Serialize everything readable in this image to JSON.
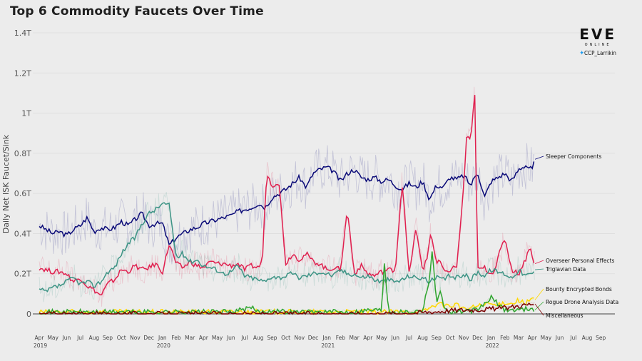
{
  "title": "Top 6 Commodity Faucets Over Time",
  "brand": {
    "logo": "EVE",
    "sub": "ONLINE",
    "handle": "CCP_Larrikin"
  },
  "chart_data": {
    "type": "line",
    "title": "Top 6 Commodity Faucets Over Time",
    "ylabel": "Daily Net ISK Faucet/Sink",
    "ylim": [
      0,
      1.4
    ],
    "y_unit": "T",
    "yticks": [
      {
        "value": 0,
        "label": "0"
      },
      {
        "value": 0.2,
        "label": "0.2T"
      },
      {
        "value": 0.4,
        "label": "0.4T"
      },
      {
        "value": 0.6,
        "label": "0.6T"
      },
      {
        "value": 0.8,
        "label": "0.8T"
      },
      {
        "value": 1.0,
        "label": "1T"
      },
      {
        "value": 1.2,
        "label": "1.2T"
      },
      {
        "value": 1.4,
        "label": "1.4T"
      }
    ],
    "xlim": [
      "2019-04",
      "2022-09"
    ],
    "month_labels": [
      "Apr",
      "May",
      "Jun",
      "Jul",
      "Aug",
      "Sep",
      "Oct",
      "Nov",
      "Dec",
      "Jan",
      "Feb",
      "Mar",
      "Apr",
      "May",
      "Jun",
      "Jul",
      "Aug",
      "Sep",
      "Oct",
      "Nov",
      "Dec",
      "Jan",
      "Feb",
      "Mar",
      "Apr",
      "May",
      "Jun",
      "Jul",
      "Aug",
      "Sep",
      "Oct",
      "Nov",
      "Dec",
      "Jan",
      "Feb",
      "Mar",
      "Apr",
      "May",
      "Jun",
      "Jul",
      "Aug",
      "Sep"
    ],
    "year_labels": [
      {
        "month_index": 0,
        "label": "2019"
      },
      {
        "month_index": 9,
        "label": "2020"
      },
      {
        "month_index": 21,
        "label": "2021"
      },
      {
        "month_index": 33,
        "label": "2022"
      }
    ],
    "series": [
      {
        "name": "Sleeper Components",
        "color": "#0a0a78",
        "x": [
          0,
          0.5,
          1,
          1.5,
          2,
          2.5,
          3,
          3.5,
          4,
          4.5,
          5,
          5.5,
          6,
          6.5,
          7,
          7.5,
          8,
          8.5,
          9,
          9.5,
          10,
          10.5,
          11,
          11.5,
          12,
          12.5,
          13,
          13.5,
          14,
          14.5,
          15,
          15.5,
          16,
          16.5,
          17,
          17.5,
          18,
          18.5,
          19,
          19.5,
          20,
          20.5,
          21,
          21.5,
          22,
          22.5,
          23,
          23.5,
          24,
          24.5,
          25,
          25.5,
          26,
          26.5,
          27,
          27.5,
          28,
          28.5,
          29,
          29.5,
          30,
          30.5,
          31,
          31.5,
          32,
          32.5,
          33,
          33.5,
          34,
          34.5,
          35,
          35.5,
          36,
          36.2
        ],
        "y": [
          0.44,
          0.42,
          0.4,
          0.41,
          0.39,
          0.42,
          0.44,
          0.48,
          0.41,
          0.43,
          0.42,
          0.43,
          0.46,
          0.44,
          0.47,
          0.5,
          0.44,
          0.45,
          0.45,
          0.34,
          0.38,
          0.4,
          0.42,
          0.43,
          0.45,
          0.46,
          0.47,
          0.48,
          0.49,
          0.51,
          0.52,
          0.53,
          0.55,
          0.53,
          0.58,
          0.6,
          0.62,
          0.65,
          0.68,
          0.63,
          0.7,
          0.72,
          0.73,
          0.71,
          0.66,
          0.7,
          0.72,
          0.68,
          0.67,
          0.68,
          0.66,
          0.67,
          0.64,
          0.62,
          0.65,
          0.63,
          0.66,
          0.57,
          0.64,
          0.63,
          0.68,
          0.67,
          0.69,
          0.64,
          0.71,
          0.58,
          0.66,
          0.68,
          0.7,
          0.66,
          0.72,
          0.74,
          0.72,
          0.77
        ]
      },
      {
        "name": "Overseer Personal Effects",
        "color": "#e0204f",
        "x": [
          0,
          0.5,
          1,
          1.5,
          2,
          2.5,
          3,
          3.5,
          4,
          4.5,
          5,
          5.5,
          6,
          6.5,
          7,
          7.5,
          8,
          8.5,
          9,
          9.5,
          10,
          10.5,
          11,
          11.5,
          12,
          12.5,
          13,
          13.5,
          14,
          14.5,
          15,
          15.5,
          16,
          16.3,
          16.6,
          17,
          17.5,
          18,
          18.5,
          19,
          19.5,
          20,
          20.5,
          21,
          21.5,
          22,
          22.5,
          23,
          23.5,
          24,
          24.5,
          25,
          25.5,
          26,
          26.5,
          27,
          27.5,
          28,
          28.3,
          28.6,
          29,
          29.3,
          29.6,
          30,
          30.5,
          31,
          31.2,
          31.5,
          31.8,
          32,
          32.5,
          33,
          33.3,
          33.6,
          34,
          34.5,
          35,
          35.5,
          35.8,
          36,
          36.2
        ],
        "y": [
          0.23,
          0.22,
          0.21,
          0.21,
          0.2,
          0.16,
          0.18,
          0.14,
          0.12,
          0.09,
          0.15,
          0.17,
          0.22,
          0.21,
          0.24,
          0.22,
          0.23,
          0.25,
          0.21,
          0.35,
          0.25,
          0.23,
          0.26,
          0.24,
          0.23,
          0.26,
          0.25,
          0.25,
          0.24,
          0.25,
          0.22,
          0.24,
          0.23,
          0.27,
          0.7,
          0.64,
          0.66,
          0.25,
          0.3,
          0.27,
          0.3,
          0.26,
          0.25,
          0.22,
          0.23,
          0.22,
          0.52,
          0.2,
          0.24,
          0.2,
          0.19,
          0.21,
          0.22,
          0.22,
          0.66,
          0.2,
          0.42,
          0.22,
          0.27,
          0.41,
          0.25,
          0.26,
          0.2,
          0.22,
          0.24,
          0.64,
          0.88,
          0.86,
          1.1,
          0.22,
          0.23,
          0.2,
          0.23,
          0.3,
          0.38,
          0.22,
          0.2,
          0.27,
          0.34,
          0.28,
          0.25
        ]
      },
      {
        "name": "Triglavian Data",
        "color": "#3d9485",
        "x": [
          0,
          0.5,
          1,
          1.5,
          2,
          2.5,
          3,
          3.5,
          4,
          4.5,
          5,
          5.5,
          6,
          6.5,
          7,
          7.5,
          8,
          8.5,
          9,
          9.5,
          10,
          10.5,
          11,
          11.5,
          12,
          12.5,
          13,
          13.5,
          14,
          14.5,
          15,
          15.5,
          16,
          16.5,
          17,
          17.5,
          18,
          18.5,
          19,
          19.5,
          20,
          20.5,
          21,
          21.5,
          22,
          22.5,
          23,
          23.5,
          24,
          24.5,
          25,
          25.5,
          26,
          26.5,
          27,
          27.5,
          28,
          28.5,
          29,
          29.5,
          30,
          30.5,
          31,
          31.5,
          32,
          32.5,
          33,
          33.5,
          34,
          34.5,
          35,
          35.5,
          36,
          36.2
        ],
        "y": [
          0.12,
          0.11,
          0.13,
          0.14,
          0.16,
          0.18,
          0.15,
          0.16,
          0.14,
          0.16,
          0.21,
          0.23,
          0.3,
          0.35,
          0.38,
          0.45,
          0.5,
          0.52,
          0.55,
          0.54,
          0.28,
          0.3,
          0.26,
          0.27,
          0.24,
          0.23,
          0.22,
          0.2,
          0.21,
          0.24,
          0.19,
          0.18,
          0.17,
          0.16,
          0.19,
          0.18,
          0.19,
          0.2,
          0.18,
          0.19,
          0.2,
          0.21,
          0.2,
          0.19,
          0.22,
          0.2,
          0.2,
          0.18,
          0.19,
          0.17,
          0.16,
          0.17,
          0.16,
          0.17,
          0.19,
          0.18,
          0.18,
          0.16,
          0.18,
          0.17,
          0.19,
          0.18,
          0.2,
          0.17,
          0.21,
          0.19,
          0.22,
          0.21,
          0.2,
          0.18,
          0.22,
          0.19,
          0.2,
          0.22
        ]
      },
      {
        "name": "Bounty Encrypted Bonds",
        "color": "#ffd800",
        "x": [
          0,
          2,
          4,
          6,
          8,
          10,
          12,
          14,
          16,
          18,
          20,
          22,
          24,
          26,
          28,
          29,
          30,
          30.5,
          31,
          32,
          33,
          33.5,
          34,
          34.5,
          35,
          35.5,
          36,
          36.2
        ],
        "y": [
          0.01,
          0.01,
          0.01,
          0.01,
          0.01,
          0.01,
          0.01,
          0.01,
          0.01,
          0.01,
          0.01,
          0.01,
          0.01,
          0.01,
          0.01,
          0.05,
          0.04,
          0.05,
          0.02,
          0.04,
          0.05,
          0.04,
          0.06,
          0.05,
          0.07,
          0.05,
          0.08,
          0.07
        ]
      },
      {
        "name": "Rogue Drone Analysis Data",
        "color": "#2fa52f",
        "x": [
          0,
          2,
          4,
          6,
          8,
          10,
          12,
          14,
          15.5,
          16,
          16.5,
          17,
          18,
          20,
          22,
          23,
          24,
          25,
          25.2,
          25.5,
          26,
          27,
          28,
          28.5,
          28.7,
          29,
          29.3,
          29.6,
          30,
          31,
          32,
          33,
          34,
          35,
          36,
          36.2
        ],
        "y": [
          0.01,
          0.01,
          0.01,
          0.01,
          0.01,
          0.01,
          0.01,
          0.01,
          0.03,
          0.01,
          0.01,
          0.02,
          0.01,
          0.01,
          0.01,
          0.01,
          0.02,
          0.02,
          0.26,
          0.02,
          0.01,
          0.01,
          0.02,
          0.18,
          0.33,
          0.04,
          0.13,
          0.02,
          0.01,
          0.01,
          0.02,
          0.08,
          0.02,
          0.02,
          0.03,
          0.02
        ]
      },
      {
        "name": "Miscellaneous",
        "color": "#7a0000",
        "x": [
          0,
          4,
          8,
          12,
          16,
          20,
          24,
          26,
          27,
          28,
          29,
          30,
          31,
          32,
          33,
          34,
          35,
          36,
          36.2
        ],
        "y": [
          0,
          0,
          0,
          0,
          0,
          0,
          0,
          0.002,
          0.004,
          0.008,
          0.012,
          0.018,
          0.02,
          0.022,
          0.025,
          0.03,
          0.04,
          0.05,
          0.05
        ]
      }
    ],
    "series_labels": [
      "Sleeper Components",
      "Overseer Personal Effects",
      "Triglavian Data",
      "Bounty Encrypted Bonds",
      "Rogue Drone Analysis Data",
      "Miscellaneous"
    ]
  }
}
